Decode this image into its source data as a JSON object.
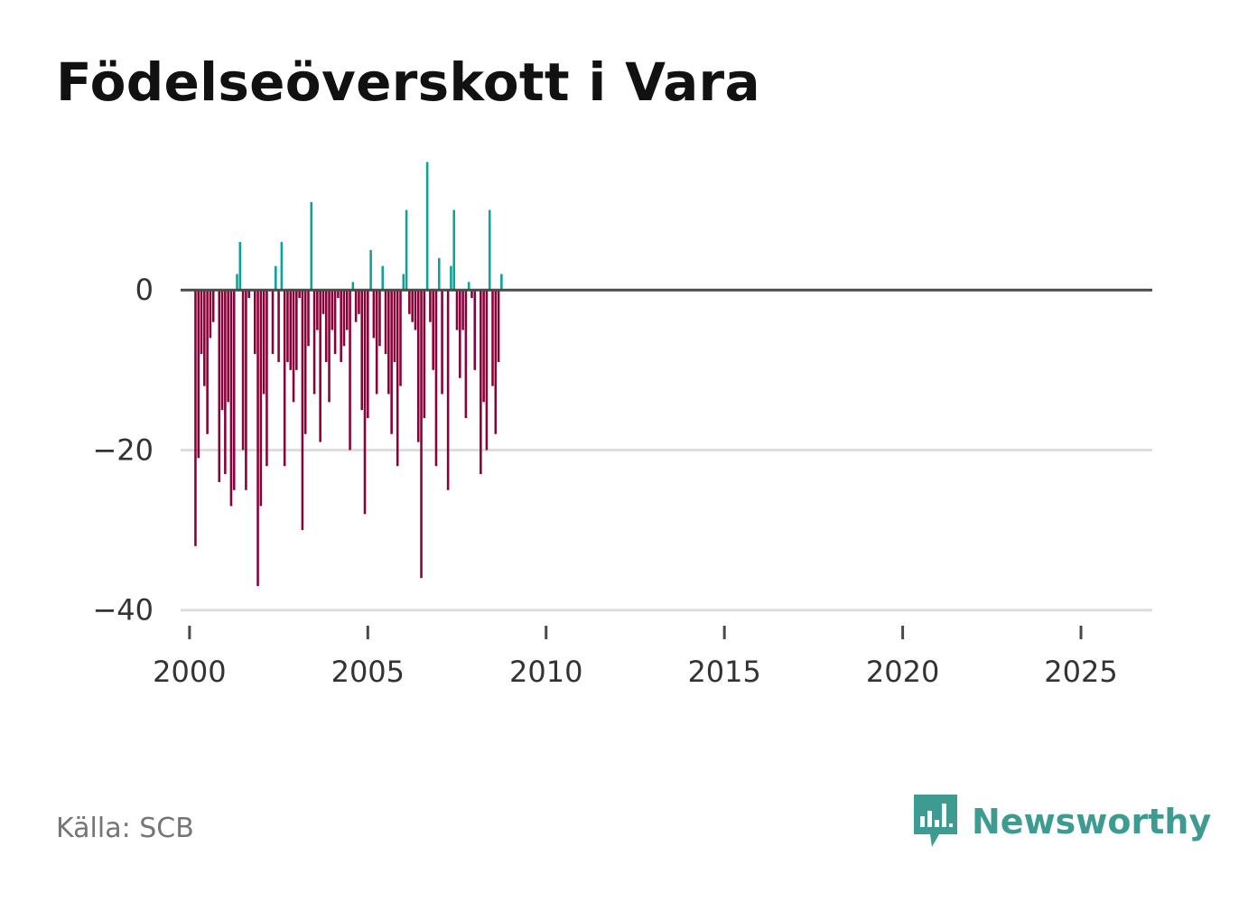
{
  "title": "Födelseöverskott i Vara",
  "source": "Källa: SCB",
  "brand": {
    "name": "Newsworthy",
    "icon": "newsworthy-logo-icon",
    "color": "#3d9b91"
  },
  "colors": {
    "positive": "#0aa39a",
    "negative": "#8c0039",
    "baseline": "#4a4a4a",
    "grid": "#dddddd",
    "text": "#333333"
  },
  "chart_data": {
    "type": "bar",
    "title": "Födelseöverskott i Vara",
    "xlabel": "",
    "ylabel": "",
    "frequency": "monthly",
    "start": "2000-03",
    "xlim": [
      1999.75,
      2027.0
    ],
    "ylim": [
      -41.5,
      16.5
    ],
    "x_ticks": [
      2000,
      2005,
      2010,
      2015,
      2020,
      2025
    ],
    "x_tick_labels": [
      "2000",
      "2005",
      "2010",
      "2015",
      "2020",
      "2025"
    ],
    "y_ticks": [
      0,
      -20,
      -40
    ],
    "y_tick_labels": [
      "0",
      "−20",
      "−40"
    ],
    "grid": true,
    "values": [
      -32,
      -21,
      -8,
      -12,
      -18,
      -6,
      -4,
      0,
      -24,
      -15,
      -23,
      -14,
      -27,
      -25,
      2,
      6,
      -20,
      -25,
      -1,
      0,
      -8,
      -37,
      -27,
      -13,
      -22,
      0,
      -8,
      3,
      -9,
      6,
      -22,
      -9,
      -10,
      -14,
      -10,
      -1,
      -30,
      -18,
      -7,
      11,
      -13,
      -5,
      -19,
      -3,
      -9,
      -14,
      -5,
      -8,
      -1,
      -9,
      -7,
      -5,
      -20,
      1,
      -4,
      -3,
      -15,
      -28,
      -16,
      5,
      -6,
      -13,
      -7,
      3,
      -8,
      -13,
      -18,
      -9,
      -22,
      -12,
      2,
      10,
      -3,
      -4,
      -5,
      -19,
      -36,
      -16,
      16,
      -4,
      -10,
      -22,
      4,
      -13,
      0,
      -25,
      3,
      10,
      -5,
      -11,
      -5,
      -16,
      1,
      -1,
      -10,
      0,
      -23,
      -14,
      -20,
      10,
      -12,
      -18,
      -9,
      2
    ]
  }
}
